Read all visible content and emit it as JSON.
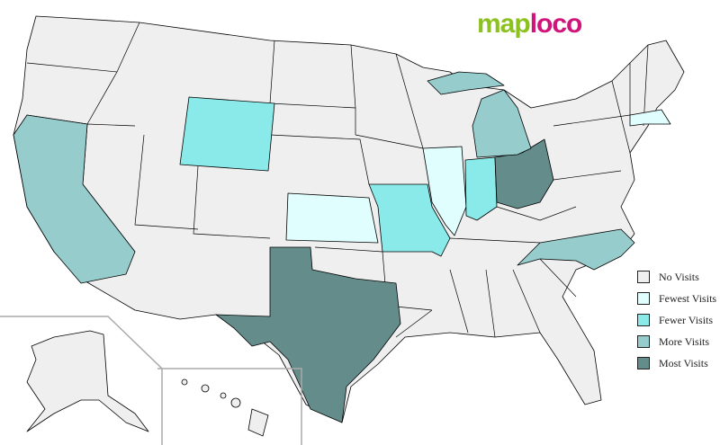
{
  "logo": {
    "part1": "map",
    "part2": "loco",
    "color1": "#8cc21f",
    "color2": "#d0157a"
  },
  "legend": [
    {
      "label": "No Visits",
      "color": "#efefef"
    },
    {
      "label": "Fewest Visits",
      "color": "#e0fefe"
    },
    {
      "label": "Fewer Visits",
      "color": "#8aeaea"
    },
    {
      "label": "More Visits",
      "color": "#96cccc"
    },
    {
      "label": "Most Visits",
      "color": "#638c8a"
    }
  ],
  "states": {
    "California": "More Visits",
    "Wyoming": "Fewer Visits",
    "Kansas": "Fewest Visits",
    "Missouri": "Fewer Visits",
    "Illinois": "Fewest Visits",
    "Indiana": "Fewer Visits",
    "Ohio": "Most Visits",
    "Michigan": "More Visits",
    "North Carolina": "More Visits",
    "Massachusetts": "Fewest Visits",
    "Texas": "Most Visits"
  }
}
